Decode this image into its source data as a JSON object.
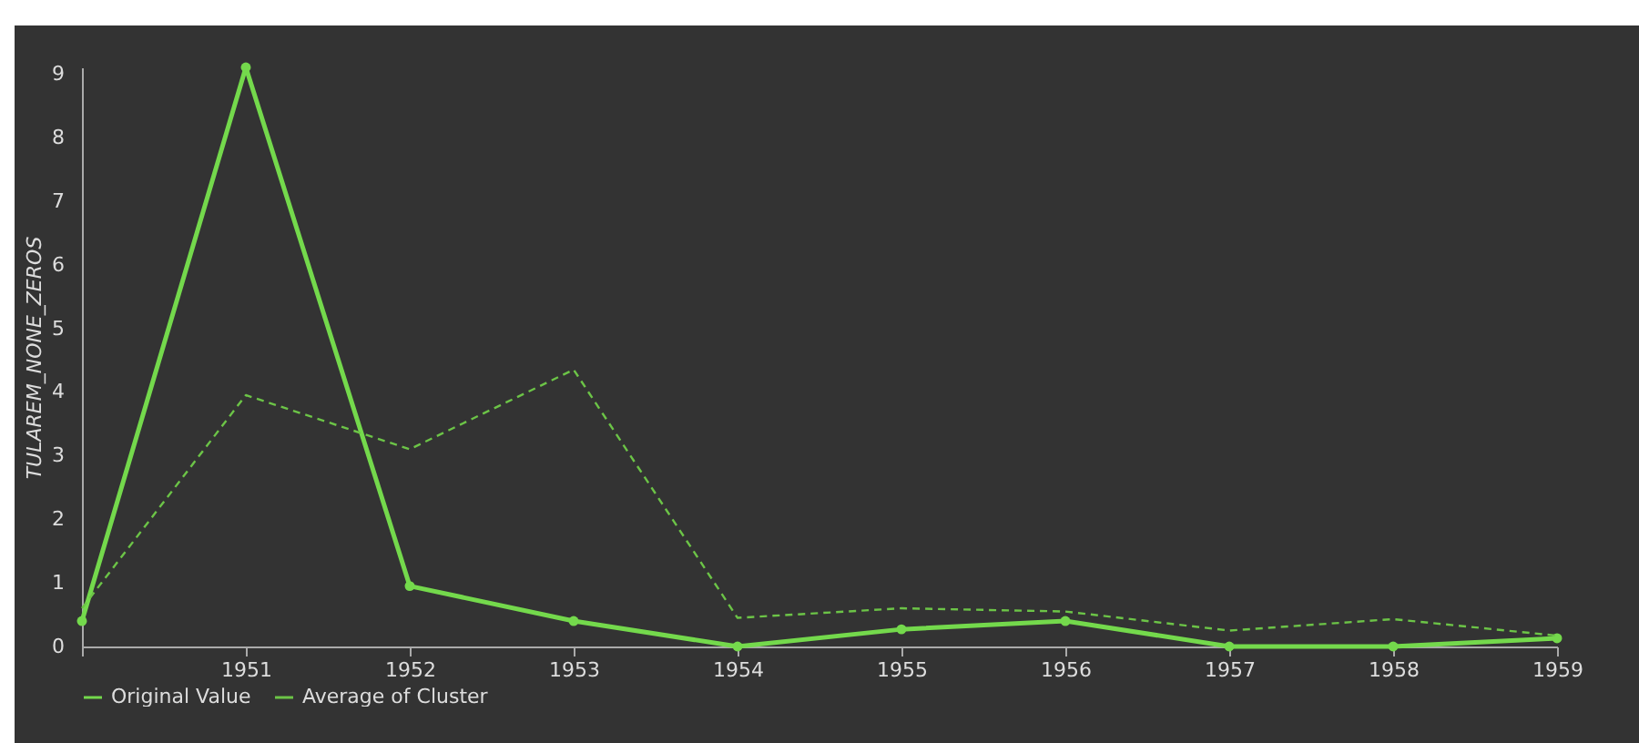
{
  "chart_data": {
    "type": "line",
    "ylabel": "TULAREM_NONE_ZEROS",
    "x": [
      1950,
      1951,
      1952,
      1953,
      1954,
      1955,
      1956,
      1957,
      1958,
      1959
    ],
    "xlim": [
      1950,
      1959
    ],
    "xticks": [
      {
        "value": 1950,
        "label": null
      },
      1951,
      1952,
      1953,
      1954,
      1955,
      1956,
      1957,
      1958,
      1959
    ],
    "ylim": [
      0,
      9.1
    ],
    "yticks": [
      0,
      1,
      2,
      3,
      4,
      5,
      6,
      7,
      8,
      9
    ],
    "grid": false,
    "legend": "bottom",
    "series": [
      {
        "name": "Original Value",
        "color": "#74d94c",
        "marker": "circle",
        "line_style": "solid",
        "values": [
          0.4,
          9.1,
          0.95,
          0.4,
          0,
          0.27,
          0.4,
          0,
          0,
          0.13
        ]
      },
      {
        "name": "Average of Cluster",
        "color": "#6cc447",
        "marker": "none",
        "line_style": "dashed",
        "values": [
          0.6,
          3.95,
          3.1,
          4.35,
          0.45,
          0.6,
          0.55,
          0.25,
          0.43,
          0.17
        ]
      }
    ]
  }
}
